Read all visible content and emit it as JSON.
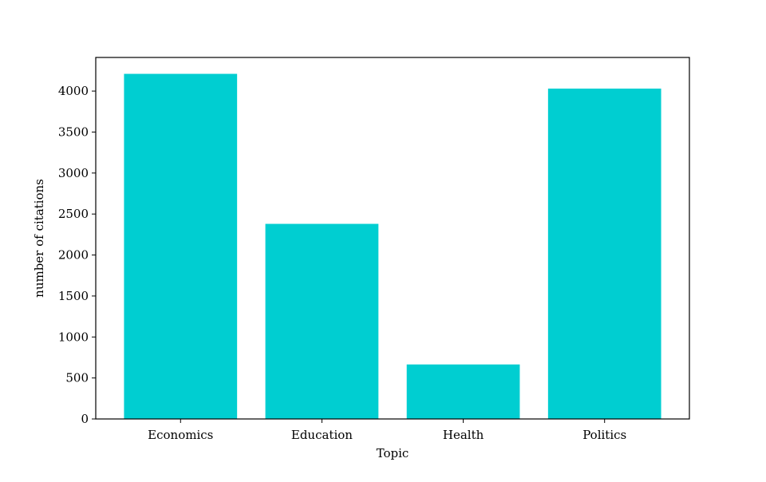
{
  "chart_data": {
    "type": "bar",
    "categories": [
      "Economics",
      "Education",
      "Health",
      "Politics"
    ],
    "values": [
      4210,
      2380,
      665,
      4030
    ],
    "xlabel": "Topic",
    "ylabel": "number of citations",
    "ylim": [
      0,
      4410
    ],
    "yticks": [
      0,
      500,
      1000,
      1500,
      2000,
      2500,
      3000,
      3500,
      4000
    ],
    "grid": false,
    "bar_color": "#00ced1"
  }
}
